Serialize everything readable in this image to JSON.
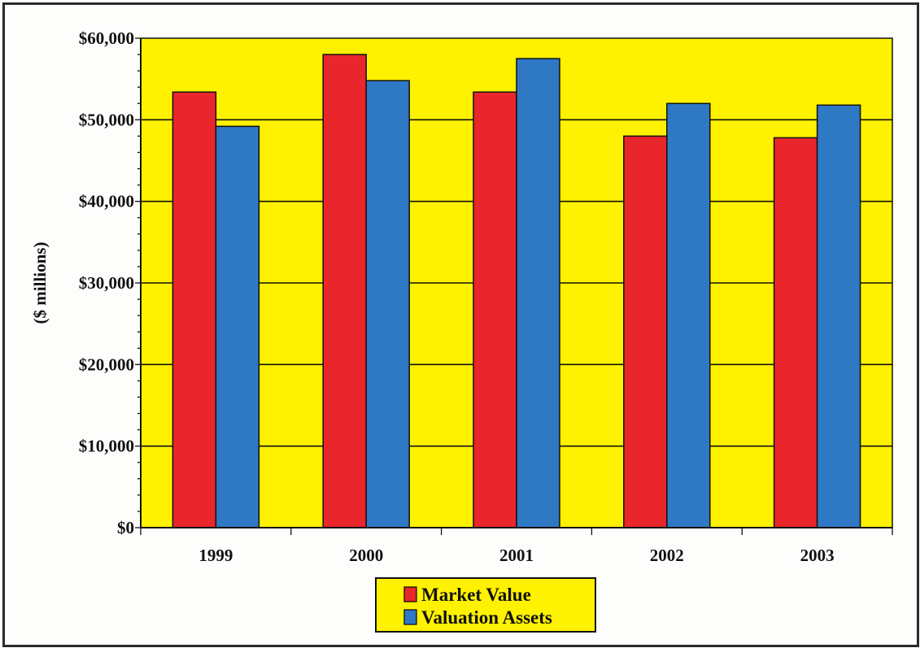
{
  "chart_data": {
    "type": "bar",
    "title": "",
    "xlabel": "",
    "ylabel": "($ millions)",
    "categories": [
      "1999",
      "2000",
      "2001",
      "2002",
      "2003"
    ],
    "series": [
      {
        "name": "Market Value",
        "color": "#e8262b",
        "values": [
          53400,
          58000,
          53400,
          48000,
          47800
        ]
      },
      {
        "name": "Valuation Assets",
        "color": "#2f78c4",
        "values": [
          49200,
          54800,
          57500,
          52000,
          51800
        ]
      }
    ],
    "ylim": [
      0,
      60000
    ],
    "yticks": [
      0,
      10000,
      20000,
      30000,
      40000,
      50000,
      60000
    ],
    "ytick_labels": [
      "$0",
      "$10,000",
      "$20,000",
      "$30,000",
      "$40,000",
      "$50,000",
      "$60,000"
    ],
    "grid": true,
    "legend_position": "bottom-center",
    "plot_background": "#fff200"
  }
}
